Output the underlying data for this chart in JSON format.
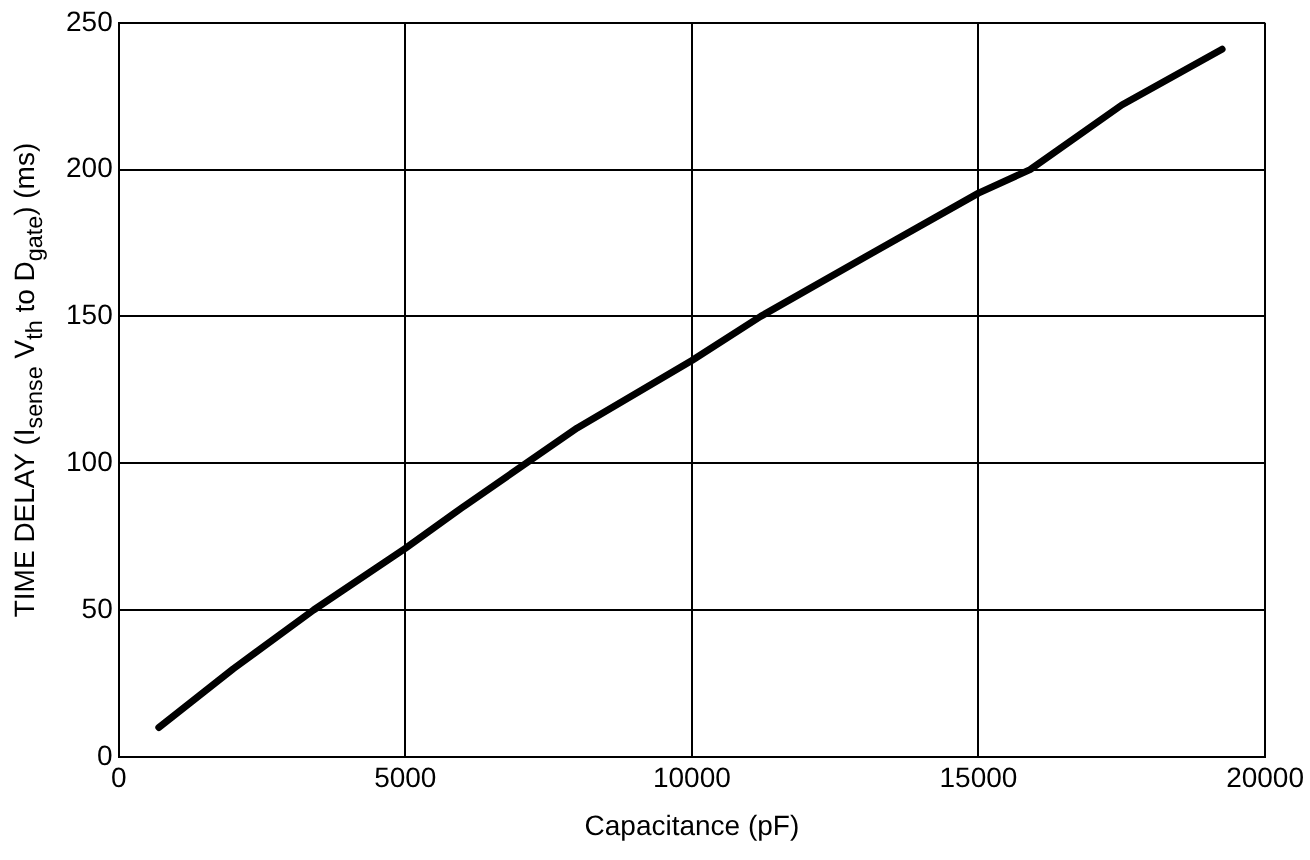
{
  "chart_data": {
    "type": "line",
    "xlabel": "Capacitance (pF)",
    "ylabel": "TIME DELAY (I$_{sense}$ V$_{th}$ to D$_{gate}$) (ms)",
    "x": [
      700,
      2000,
      3400,
      5000,
      6000,
      8000,
      10000,
      11200,
      13000,
      15000,
      15900,
      17500,
      19250
    ],
    "series": [
      {
        "color": "#000000",
        "values": [
          10,
          30,
          50,
          71,
          85,
          112,
          135,
          150,
          170,
          192,
          200,
          222,
          241
        ]
      }
    ],
    "xlim": [
      0,
      20000
    ],
    "xticks": [
      0,
      5000,
      10000,
      15000,
      20000
    ],
    "ylim": [
      0,
      250
    ],
    "yticks": [
      0,
      50,
      100,
      150,
      200,
      250
    ],
    "grid": true,
    "legend": false,
    "marker": "none",
    "line_style": "solid"
  }
}
